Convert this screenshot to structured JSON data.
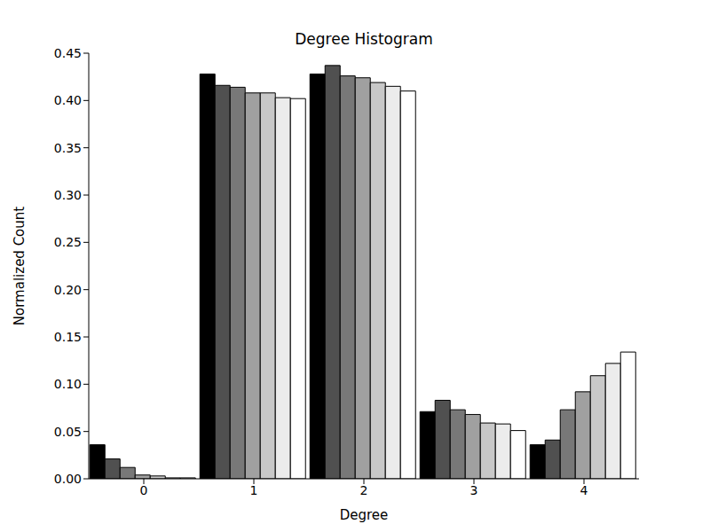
{
  "chart_data": {
    "type": "bar",
    "title": "Degree Histogram",
    "x_label": "Degree",
    "y_label": "Normalized Count",
    "categories": [
      "0",
      "1",
      "2",
      "3",
      "4"
    ],
    "series": [
      {
        "color": "#000000",
        "values": [
          0.036,
          0.428,
          0.428,
          0.071,
          0.036
        ]
      },
      {
        "color": "#505050",
        "values": [
          0.021,
          0.416,
          0.437,
          0.083,
          0.041
        ]
      },
      {
        "color": "#787878",
        "values": [
          0.012,
          0.414,
          0.426,
          0.073,
          0.073
        ]
      },
      {
        "color": "#a0a0a0",
        "values": [
          0.004,
          0.408,
          0.424,
          0.068,
          0.092
        ]
      },
      {
        "color": "#c8c8c8",
        "values": [
          0.003,
          0.408,
          0.419,
          0.059,
          0.109
        ]
      },
      {
        "color": "#ececec",
        "values": [
          0.001,
          0.403,
          0.415,
          0.058,
          0.122
        ]
      },
      {
        "color": "#ffffff",
        "values": [
          0.001,
          0.402,
          0.41,
          0.051,
          0.134
        ]
      }
    ],
    "ylim": [
      0,
      0.45
    ],
    "yticks": [
      {
        "value": 0,
        "label": "0.00"
      },
      {
        "value": 0.05,
        "label": "0.05"
      },
      {
        "value": 0.1,
        "label": "0.10"
      },
      {
        "value": 0.15,
        "label": "0.15"
      },
      {
        "value": 0.2,
        "label": "0.20"
      },
      {
        "value": 0.25,
        "label": "0.25"
      },
      {
        "value": 0.3,
        "label": "0.30"
      },
      {
        "value": 0.35,
        "label": "0.35"
      },
      {
        "value": 0.4,
        "label": "0.40"
      },
      {
        "value": 0.45,
        "label": "0.45"
      }
    ],
    "grid": false
  }
}
